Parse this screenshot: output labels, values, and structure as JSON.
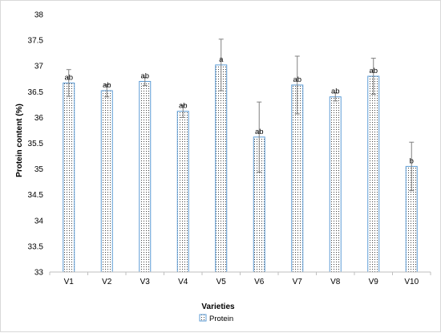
{
  "chart_data": {
    "type": "bar",
    "categories": [
      "V1",
      "V2",
      "V3",
      "V4",
      "V5",
      "V6",
      "V7",
      "V8",
      "V9",
      "V10"
    ],
    "series": [
      {
        "name": "Protein",
        "values": [
          36.67,
          36.52,
          36.7,
          36.12,
          37.02,
          35.62,
          36.63,
          36.4,
          36.8,
          35.05
        ],
        "error": [
          0.26,
          0.12,
          0.08,
          0.12,
          0.5,
          0.68,
          0.56,
          0.08,
          0.35,
          0.47
        ],
        "labels": [
          "ab",
          "ab",
          "ab",
          "ab",
          "a",
          "ab",
          "ab",
          "ab",
          "ab",
          "b"
        ]
      }
    ],
    "xlabel": "Varieties",
    "ylabel": "Protein content (%)",
    "ylim": [
      33,
      38
    ],
    "yticks": [
      "33",
      "33.5",
      "34",
      "34.5",
      "35",
      "35.5",
      "36",
      "36.5",
      "37",
      "37.5",
      "38"
    ],
    "grid": false,
    "legend": "bottom",
    "colors": {
      "bar_fill": "#ffffff",
      "bar_edge": "#5b9bd5",
      "dots": "#404040",
      "error": "#808080",
      "axis": "#bfbfbf"
    }
  }
}
